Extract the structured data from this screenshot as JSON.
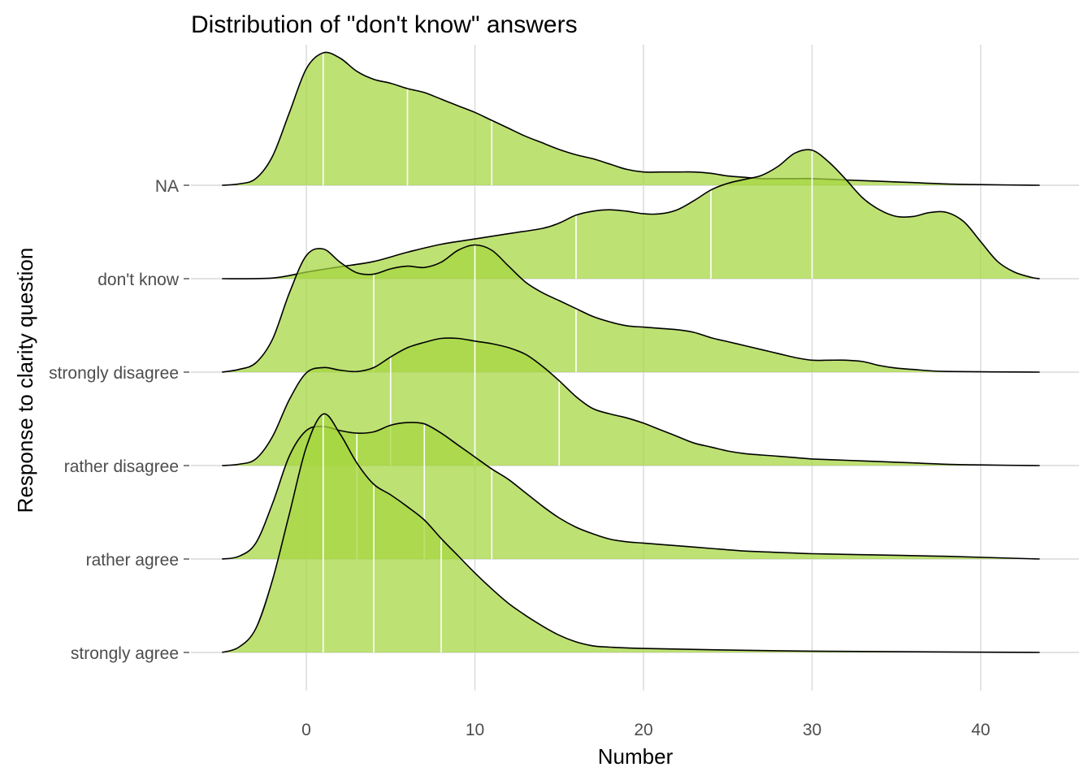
{
  "chart_data": {
    "type": "ridgeline",
    "title": "Distribution of \"don't know\" answers",
    "xlabel": "Number",
    "ylabel": "Response to clarity question",
    "xlim": [
      -5,
      43.5
    ],
    "xticks": [
      0,
      10,
      20,
      30,
      40
    ],
    "grid": true,
    "colors": {
      "fill": "#a5d63f",
      "outline": "#000000",
      "quantile_line": "#ffffff",
      "grid": "#d9d9d9"
    },
    "categories": [
      "NA",
      "don't know",
      "strongly disagree",
      "rather disagree",
      "rather agree",
      "strongly agree"
    ],
    "series": [
      {
        "name": "NA",
        "quantiles": [
          1,
          6,
          11
        ],
        "density": [
          [
            -5,
            0
          ],
          [
            -4,
            0.01
          ],
          [
            -3,
            0.05
          ],
          [
            -2,
            0.22
          ],
          [
            -1,
            0.55
          ],
          [
            0,
            0.88
          ],
          [
            1,
            1.0
          ],
          [
            2,
            0.96
          ],
          [
            3,
            0.86
          ],
          [
            4,
            0.8
          ],
          [
            5,
            0.77
          ],
          [
            6,
            0.73
          ],
          [
            7,
            0.7
          ],
          [
            8,
            0.65
          ],
          [
            9,
            0.6
          ],
          [
            10,
            0.55
          ],
          [
            11,
            0.49
          ],
          [
            12,
            0.43
          ],
          [
            13,
            0.37
          ],
          [
            14,
            0.32
          ],
          [
            15,
            0.27
          ],
          [
            16,
            0.23
          ],
          [
            17,
            0.2
          ],
          [
            18,
            0.16
          ],
          [
            19,
            0.12
          ],
          [
            20,
            0.1
          ],
          [
            21,
            0.1
          ],
          [
            22,
            0.1
          ],
          [
            23,
            0.1
          ],
          [
            24,
            0.09
          ],
          [
            25,
            0.07
          ],
          [
            26,
            0.06
          ],
          [
            27,
            0.05
          ],
          [
            28,
            0.05
          ],
          [
            29,
            0.05
          ],
          [
            30,
            0.05
          ],
          [
            32,
            0.04
          ],
          [
            34,
            0.03
          ],
          [
            36,
            0.02
          ],
          [
            38,
            0.01
          ],
          [
            40,
            0.005
          ],
          [
            43.5,
            0
          ]
        ]
      },
      {
        "name": "don't know",
        "quantiles": [
          16,
          24,
          30
        ],
        "density": [
          [
            -5,
            0
          ],
          [
            -2,
            0.005
          ],
          [
            0,
            0.05
          ],
          [
            2,
            0.09
          ],
          [
            4,
            0.13
          ],
          [
            6,
            0.2
          ],
          [
            8,
            0.26
          ],
          [
            10,
            0.3
          ],
          [
            12,
            0.34
          ],
          [
            14,
            0.38
          ],
          [
            15,
            0.42
          ],
          [
            16,
            0.48
          ],
          [
            17,
            0.51
          ],
          [
            18,
            0.52
          ],
          [
            19,
            0.51
          ],
          [
            20,
            0.49
          ],
          [
            21,
            0.49
          ],
          [
            22,
            0.52
          ],
          [
            23,
            0.59
          ],
          [
            24,
            0.67
          ],
          [
            25,
            0.72
          ],
          [
            26,
            0.75
          ],
          [
            27,
            0.78
          ],
          [
            28,
            0.85
          ],
          [
            29,
            0.95
          ],
          [
            30,
            0.97
          ],
          [
            31,
            0.88
          ],
          [
            32,
            0.75
          ],
          [
            33,
            0.61
          ],
          [
            34,
            0.52
          ],
          [
            35,
            0.47
          ],
          [
            36,
            0.47
          ],
          [
            37,
            0.5
          ],
          [
            38,
            0.5
          ],
          [
            39,
            0.43
          ],
          [
            40,
            0.28
          ],
          [
            41,
            0.13
          ],
          [
            42,
            0.05
          ],
          [
            43,
            0.01
          ],
          [
            43.5,
            0
          ]
        ]
      },
      {
        "name": "strongly disagree",
        "quantiles": [
          4,
          10,
          16
        ],
        "density": [
          [
            -5,
            0
          ],
          [
            -4,
            0.02
          ],
          [
            -3,
            0.07
          ],
          [
            -2,
            0.25
          ],
          [
            -1,
            0.6
          ],
          [
            0,
            0.88
          ],
          [
            1,
            0.93
          ],
          [
            2,
            0.83
          ],
          [
            3,
            0.75
          ],
          [
            4,
            0.74
          ],
          [
            5,
            0.78
          ],
          [
            6,
            0.8
          ],
          [
            7,
            0.79
          ],
          [
            8,
            0.83
          ],
          [
            9,
            0.92
          ],
          [
            10,
            0.96
          ],
          [
            11,
            0.92
          ],
          [
            12,
            0.8
          ],
          [
            13,
            0.68
          ],
          [
            14,
            0.6
          ],
          [
            15,
            0.54
          ],
          [
            16,
            0.48
          ],
          [
            17,
            0.42
          ],
          [
            18,
            0.38
          ],
          [
            19,
            0.35
          ],
          [
            20,
            0.34
          ],
          [
            21,
            0.33
          ],
          [
            22,
            0.32
          ],
          [
            23,
            0.3
          ],
          [
            24,
            0.26
          ],
          [
            25,
            0.23
          ],
          [
            26,
            0.2
          ],
          [
            27,
            0.17
          ],
          [
            28,
            0.14
          ],
          [
            29,
            0.11
          ],
          [
            30,
            0.09
          ],
          [
            31,
            0.09
          ],
          [
            32,
            0.09
          ],
          [
            33,
            0.08
          ],
          [
            34,
            0.05
          ],
          [
            35,
            0.03
          ],
          [
            36,
            0.02
          ],
          [
            38,
            0.005
          ],
          [
            43.5,
            0
          ]
        ]
      },
      {
        "name": "rather disagree",
        "quantiles": [
          5,
          10,
          15
        ],
        "density": [
          [
            -5,
            0
          ],
          [
            -4,
            0.01
          ],
          [
            -3,
            0.05
          ],
          [
            -2,
            0.22
          ],
          [
            -1,
            0.5
          ],
          [
            0,
            0.7
          ],
          [
            1,
            0.74
          ],
          [
            2,
            0.72
          ],
          [
            3,
            0.71
          ],
          [
            4,
            0.74
          ],
          [
            5,
            0.82
          ],
          [
            6,
            0.89
          ],
          [
            7,
            0.93
          ],
          [
            8,
            0.96
          ],
          [
            9,
            0.96
          ],
          [
            10,
            0.94
          ],
          [
            11,
            0.92
          ],
          [
            12,
            0.89
          ],
          [
            13,
            0.84
          ],
          [
            14,
            0.75
          ],
          [
            15,
            0.64
          ],
          [
            16,
            0.52
          ],
          [
            17,
            0.43
          ],
          [
            18,
            0.39
          ],
          [
            19,
            0.36
          ],
          [
            20,
            0.32
          ],
          [
            21,
            0.27
          ],
          [
            22,
            0.22
          ],
          [
            23,
            0.17
          ],
          [
            24,
            0.14
          ],
          [
            25,
            0.11
          ],
          [
            26,
            0.09
          ],
          [
            27,
            0.08
          ],
          [
            28,
            0.07
          ],
          [
            29,
            0.06
          ],
          [
            30,
            0.05
          ],
          [
            32,
            0.04
          ],
          [
            34,
            0.03
          ],
          [
            36,
            0.02
          ],
          [
            38,
            0.01
          ],
          [
            40,
            0.005
          ],
          [
            43.5,
            0
          ]
        ]
      },
      {
        "name": "rather agree",
        "quantiles": [
          3,
          7,
          11
        ],
        "density": [
          [
            -5,
            0
          ],
          [
            -4,
            0.02
          ],
          [
            -3,
            0.12
          ],
          [
            -2,
            0.42
          ],
          [
            -1,
            0.78
          ],
          [
            0,
            0.97
          ],
          [
            1,
            1.0
          ],
          [
            2,
            0.97
          ],
          [
            3,
            0.95
          ],
          [
            4,
            0.96
          ],
          [
            5,
            1.01
          ],
          [
            6,
            1.03
          ],
          [
            7,
            1.02
          ],
          [
            8,
            0.95
          ],
          [
            9,
            0.86
          ],
          [
            10,
            0.77
          ],
          [
            11,
            0.68
          ],
          [
            12,
            0.6
          ],
          [
            13,
            0.5
          ],
          [
            14,
            0.4
          ],
          [
            15,
            0.31
          ],
          [
            16,
            0.24
          ],
          [
            17,
            0.19
          ],
          [
            18,
            0.15
          ],
          [
            19,
            0.13
          ],
          [
            20,
            0.12
          ],
          [
            22,
            0.1
          ],
          [
            24,
            0.08
          ],
          [
            26,
            0.06
          ],
          [
            28,
            0.05
          ],
          [
            30,
            0.04
          ],
          [
            34,
            0.03
          ],
          [
            38,
            0.02
          ],
          [
            43.5,
            0
          ]
        ]
      },
      {
        "name": "strongly agree",
        "quantiles": [
          1,
          4,
          8
        ],
        "density": [
          [
            -5,
            0
          ],
          [
            -4,
            0.04
          ],
          [
            -3,
            0.18
          ],
          [
            -2,
            0.55
          ],
          [
            -1,
            1.05
          ],
          [
            0,
            1.55
          ],
          [
            1,
            1.8
          ],
          [
            2,
            1.65
          ],
          [
            3,
            1.43
          ],
          [
            4,
            1.27
          ],
          [
            5,
            1.19
          ],
          [
            6,
            1.1
          ],
          [
            7,
            1.0
          ],
          [
            8,
            0.86
          ],
          [
            9,
            0.73
          ],
          [
            10,
            0.6
          ],
          [
            11,
            0.48
          ],
          [
            12,
            0.37
          ],
          [
            13,
            0.28
          ],
          [
            14,
            0.2
          ],
          [
            15,
            0.13
          ],
          [
            16,
            0.08
          ],
          [
            17,
            0.05
          ],
          [
            18,
            0.04
          ],
          [
            20,
            0.03
          ],
          [
            24,
            0.02
          ],
          [
            30,
            0.01
          ],
          [
            36,
            0.005
          ],
          [
            43.5,
            0
          ]
        ]
      }
    ]
  }
}
